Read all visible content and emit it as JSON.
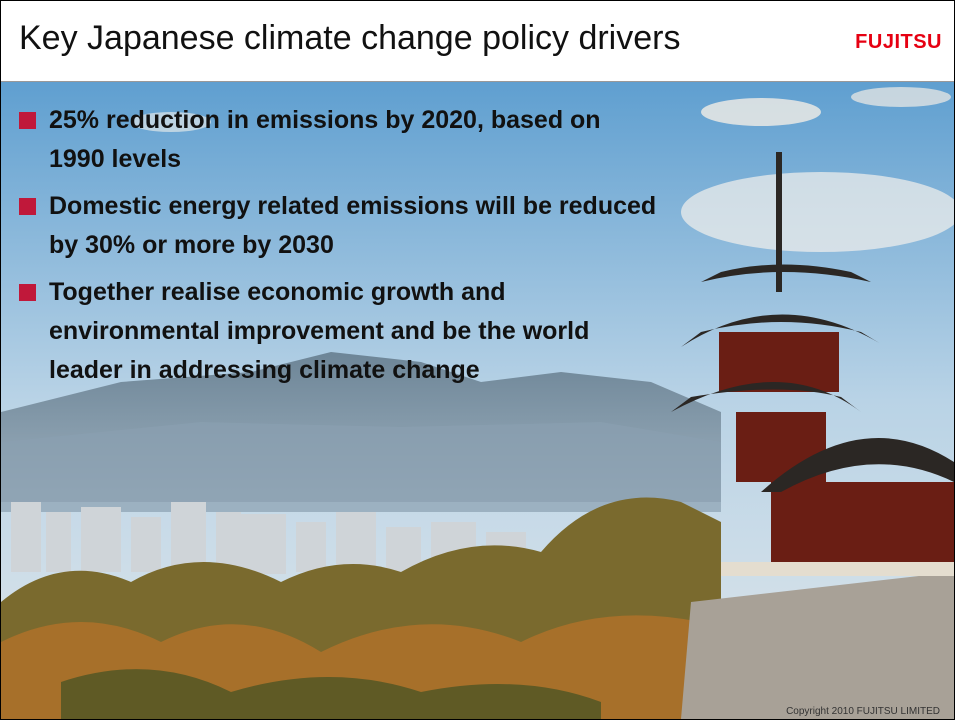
{
  "header": {
    "title": "Key Japanese climate change policy drivers",
    "logo": "FUJITSU"
  },
  "bullets": [
    "25% reduction in emissions by 2020, based on 1990 levels",
    "Domestic energy related emissions will be reduced by 30% or more by 2030",
    "Together realise economic growth and environmental improvement and be the world leader in addressing climate change"
  ],
  "footer": {
    "copyright": "Copyright 2010 FUJITSU LIMITED"
  }
}
